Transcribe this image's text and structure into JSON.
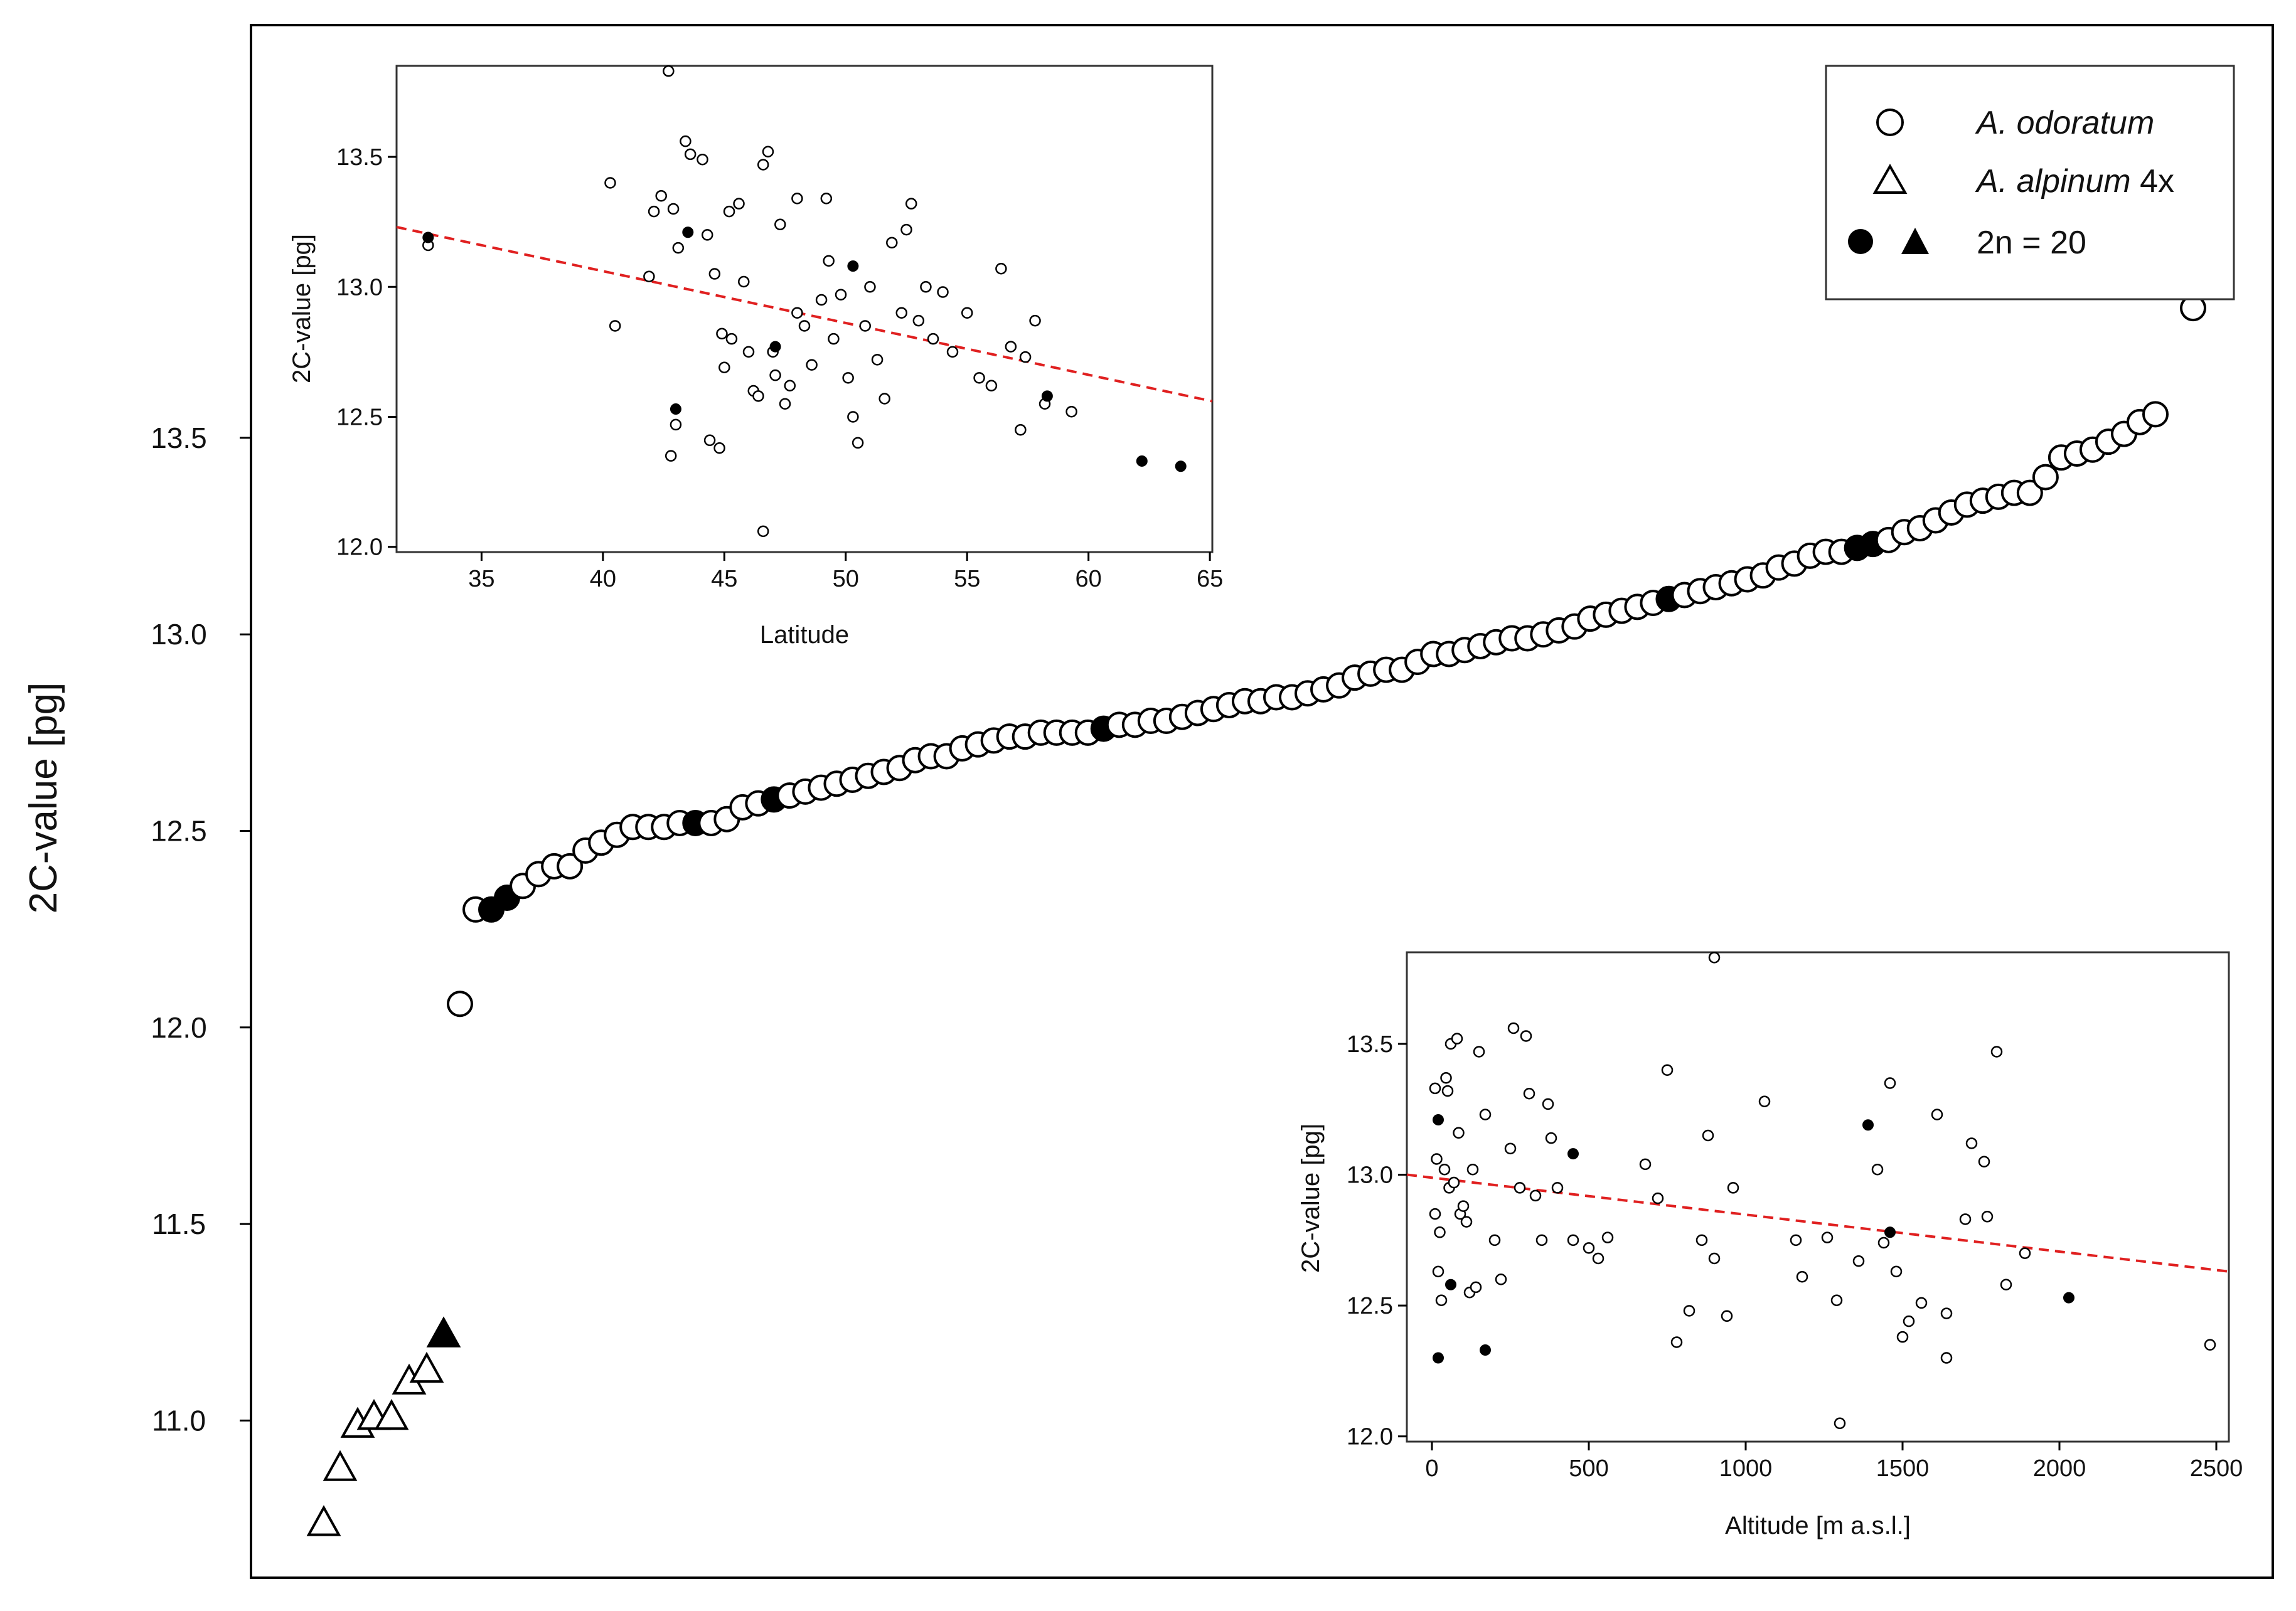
{
  "colors": {
    "trend": "#e02020",
    "ink": "#000000",
    "open_fill": "#ffffff"
  },
  "legend": {
    "items": [
      {
        "species": "A. odoratum",
        "suffix": "",
        "icon": "open-circle-icon"
      },
      {
        "species": "A. alpinum",
        "suffix": " 4x",
        "icon": "open-triangle-icon"
      },
      {
        "species": "",
        "suffix": "2n = 20",
        "icon": "filled-circle-and-triangle-icon"
      }
    ]
  },
  "chart_data": [
    {
      "id": "main",
      "type": "scatter",
      "title": "",
      "xlabel": "",
      "ylabel": "2C-value [pg]",
      "ylim": [
        10.6,
        14.55
      ],
      "yticks": [
        "11.0",
        "11.5",
        "12.0",
        "12.5",
        "13.0",
        "13.5"
      ],
      "ytick_values": [
        11.0,
        11.5,
        12.0,
        12.5,
        13.0,
        13.5
      ],
      "x_axis_shown": false,
      "series": [
        {
          "name": "A. alpinum 4x",
          "marker": "triangle-open",
          "values": [
            10.74,
            10.88,
            10.99,
            11.01,
            11.01,
            11.1,
            11.13
          ]
        },
        {
          "name": "A. alpinum 2n = 20",
          "marker": "triangle-filled",
          "values": [
            11.22
          ]
        },
        {
          "name": "A. odoratum",
          "marker": "circle-open",
          "values": [
            12.06,
            12.3,
            12.3,
            12.33,
            12.36,
            12.39,
            12.41,
            12.41,
            12.45,
            12.47,
            12.49,
            12.51,
            12.51,
            12.51,
            12.52,
            12.52,
            12.52,
            12.53,
            12.56,
            12.57,
            12.58,
            12.59,
            12.6,
            12.61,
            12.62,
            12.63,
            12.64,
            12.65,
            12.66,
            12.68,
            12.69,
            12.69,
            12.71,
            12.72,
            12.73,
            12.74,
            12.74,
            12.75,
            12.75,
            12.75,
            12.75,
            12.76,
            12.77,
            12.77,
            12.78,
            12.78,
            12.79,
            12.8,
            12.81,
            12.82,
            12.83,
            12.83,
            12.84,
            12.84,
            12.85,
            12.86,
            12.87,
            12.89,
            12.9,
            12.91,
            12.91,
            12.93,
            12.95,
            12.95,
            12.96,
            12.97,
            12.98,
            12.99,
            12.99,
            13.0,
            13.01,
            13.02,
            13.04,
            13.05,
            13.06,
            13.07,
            13.08,
            13.09,
            13.1,
            13.11,
            13.12,
            13.13,
            13.14,
            13.15,
            13.17,
            13.18,
            13.2,
            13.21,
            13.21,
            13.22,
            13.23,
            13.24,
            13.26,
            13.27,
            13.29,
            13.31,
            13.33,
            13.34,
            13.35,
            13.36,
            13.36,
            13.4,
            13.45,
            13.46,
            13.47,
            13.49,
            13.51,
            13.54,
            13.56,
            13.83
          ],
          "filled_indices": [
            2,
            3,
            15,
            20,
            41,
            77,
            89,
            90
          ]
        }
      ]
    },
    {
      "id": "inset-latitude",
      "type": "scatter",
      "xlabel": "Latitude",
      "ylabel": "2C-value [pg]",
      "xlim": [
        31.5,
        65.1
      ],
      "ylim": [
        11.98,
        13.85
      ],
      "xticks": [
        "35",
        "40",
        "45",
        "50",
        "55",
        "60",
        "65"
      ],
      "xtick_values": [
        35,
        40,
        45,
        50,
        55,
        60,
        65
      ],
      "yticks": [
        "12.0",
        "12.5",
        "13.0",
        "13.5"
      ],
      "ytick_values": [
        12.0,
        12.5,
        13.0,
        13.5
      ],
      "trend": {
        "x": [
          31.5,
          65.1
        ],
        "y": [
          13.23,
          12.56
        ],
        "style": "dashed"
      },
      "series": [
        {
          "name": "A. odoratum",
          "marker": "circle-open",
          "points": [
            [
              32.8,
              13.16
            ],
            [
              40.3,
              13.4
            ],
            [
              40.5,
              12.85
            ],
            [
              41.9,
              13.04
            ],
            [
              42.1,
              13.29
            ],
            [
              42.4,
              13.35
            ],
            [
              42.7,
              13.83
            ],
            [
              42.9,
              13.3
            ],
            [
              43.1,
              13.15
            ],
            [
              43.4,
              13.56
            ],
            [
              43.6,
              13.51
            ],
            [
              44.1,
              13.49
            ],
            [
              44.3,
              13.2
            ],
            [
              44.6,
              13.05
            ],
            [
              44.9,
              12.82
            ],
            [
              45.0,
              12.69
            ],
            [
              45.3,
              12.8
            ],
            [
              45.6,
              13.32
            ],
            [
              45.8,
              13.02
            ],
            [
              46.0,
              12.75
            ],
            [
              46.2,
              12.6
            ],
            [
              46.4,
              12.58
            ],
            [
              46.6,
              13.47
            ],
            [
              46.8,
              13.52
            ],
            [
              47.0,
              12.75
            ],
            [
              47.1,
              12.66
            ],
            [
              47.3,
              13.24
            ],
            [
              47.5,
              12.55
            ],
            [
              47.7,
              12.62
            ],
            [
              48.0,
              12.9
            ],
            [
              48.3,
              12.85
            ],
            [
              48.6,
              12.7
            ],
            [
              49.0,
              12.95
            ],
            [
              49.3,
              13.1
            ],
            [
              49.5,
              12.8
            ],
            [
              49.8,
              12.97
            ],
            [
              50.1,
              12.65
            ],
            [
              50.3,
              12.5
            ],
            [
              50.5,
              12.4
            ],
            [
              50.8,
              12.85
            ],
            [
              51.0,
              13.0
            ],
            [
              51.3,
              12.72
            ],
            [
              51.6,
              12.57
            ],
            [
              51.9,
              13.17
            ],
            [
              52.3,
              12.9
            ],
            [
              52.5,
              13.22
            ],
            [
              52.7,
              13.32
            ],
            [
              53.0,
              12.87
            ],
            [
              53.3,
              13.0
            ],
            [
              53.6,
              12.8
            ],
            [
              54.0,
              12.98
            ],
            [
              54.4,
              12.75
            ],
            [
              55.0,
              12.9
            ],
            [
              55.5,
              12.65
            ],
            [
              56.0,
              12.62
            ],
            [
              56.4,
              13.07
            ],
            [
              56.8,
              12.77
            ],
            [
              57.2,
              12.45
            ],
            [
              57.4,
              12.73
            ],
            [
              57.8,
              12.87
            ],
            [
              58.2,
              12.55
            ],
            [
              59.3,
              12.52
            ],
            [
              44.4,
              12.41
            ],
            [
              44.8,
              12.38
            ],
            [
              46.6,
              12.06
            ],
            [
              42.8,
              12.35
            ],
            [
              43.0,
              12.47
            ],
            [
              48.0,
              13.34
            ],
            [
              49.2,
              13.34
            ],
            [
              45.2,
              13.29
            ]
          ]
        },
        {
          "name": "2n = 20",
          "marker": "circle-filled",
          "points": [
            [
              32.8,
              13.19
            ],
            [
              43.5,
              13.21
            ],
            [
              43.0,
              12.53
            ],
            [
              47.1,
              12.77
            ],
            [
              50.3,
              13.08
            ],
            [
              58.3,
              12.58
            ],
            [
              62.2,
              12.33
            ],
            [
              63.8,
              12.31
            ]
          ]
        }
      ]
    },
    {
      "id": "inset-altitude",
      "type": "scatter",
      "xlabel": "Altitude [m a.s.l.]",
      "ylabel": "2C-value [pg]",
      "xlim": [
        -80,
        2540
      ],
      "ylim": [
        11.98,
        13.85
      ],
      "xticks": [
        "0",
        "500",
        "1000",
        "1500",
        "2000",
        "2500"
      ],
      "xtick_values": [
        0,
        500,
        1000,
        1500,
        2000,
        2500
      ],
      "yticks": [
        "12.0",
        "12.5",
        "13.0",
        "13.5"
      ],
      "ytick_values": [
        12.0,
        12.5,
        13.0,
        13.5
      ],
      "trend": {
        "x": [
          -80,
          2540
        ],
        "y": [
          13.0,
          12.63
        ],
        "style": "dashed"
      },
      "series": [
        {
          "name": "A. odoratum",
          "marker": "circle-open",
          "points": [
            [
              10,
              13.33
            ],
            [
              10,
              12.85
            ],
            [
              15,
              13.06
            ],
            [
              20,
              12.63
            ],
            [
              25,
              12.78
            ],
            [
              30,
              12.52
            ],
            [
              40,
              13.02
            ],
            [
              45,
              13.37
            ],
            [
              50,
              13.32
            ],
            [
              55,
              12.95
            ],
            [
              60,
              13.5
            ],
            [
              70,
              12.97
            ],
            [
              80,
              13.52
            ],
            [
              85,
              13.16
            ],
            [
              90,
              12.85
            ],
            [
              100,
              12.88
            ],
            [
              110,
              12.82
            ],
            [
              120,
              12.55
            ],
            [
              130,
              13.02
            ],
            [
              140,
              12.57
            ],
            [
              150,
              13.47
            ],
            [
              170,
              13.23
            ],
            [
              200,
              12.75
            ],
            [
              220,
              12.6
            ],
            [
              250,
              13.1
            ],
            [
              260,
              13.56
            ],
            [
              280,
              12.95
            ],
            [
              300,
              13.53
            ],
            [
              310,
              13.31
            ],
            [
              330,
              12.92
            ],
            [
              350,
              12.75
            ],
            [
              370,
              13.27
            ],
            [
              380,
              13.14
            ],
            [
              400,
              12.95
            ],
            [
              450,
              12.75
            ],
            [
              500,
              12.72
            ],
            [
              530,
              12.68
            ],
            [
              560,
              12.76
            ],
            [
              680,
              13.04
            ],
            [
              720,
              12.91
            ],
            [
              750,
              13.4
            ],
            [
              780,
              12.36
            ],
            [
              820,
              12.48
            ],
            [
              860,
              12.75
            ],
            [
              880,
              13.15
            ],
            [
              900,
              12.68
            ],
            [
              900,
              13.83
            ],
            [
              940,
              12.46
            ],
            [
              960,
              12.95
            ],
            [
              1060,
              13.28
            ],
            [
              1160,
              12.75
            ],
            [
              1180,
              12.61
            ],
            [
              1260,
              12.76
            ],
            [
              1290,
              12.52
            ],
            [
              1300,
              12.05
            ],
            [
              1360,
              12.67
            ],
            [
              1420,
              13.02
            ],
            [
              1440,
              12.74
            ],
            [
              1460,
              13.35
            ],
            [
              1480,
              12.63
            ],
            [
              1500,
              12.38
            ],
            [
              1520,
              12.44
            ],
            [
              1560,
              12.51
            ],
            [
              1610,
              13.23
            ],
            [
              1640,
              12.3
            ],
            [
              1640,
              12.47
            ],
            [
              1700,
              12.83
            ],
            [
              1720,
              13.12
            ],
            [
              1760,
              13.05
            ],
            [
              1770,
              12.84
            ],
            [
              1800,
              13.47
            ],
            [
              1830,
              12.58
            ],
            [
              1890,
              12.7
            ],
            [
              2480,
              12.35
            ]
          ]
        },
        {
          "name": "2n = 20",
          "marker": "circle-filled",
          "points": [
            [
              20,
              13.21
            ],
            [
              20,
              12.3
            ],
            [
              60,
              12.58
            ],
            [
              170,
              12.33
            ],
            [
              450,
              13.08
            ],
            [
              1390,
              13.19
            ],
            [
              1460,
              12.78
            ],
            [
              2030,
              12.53
            ]
          ]
        }
      ]
    }
  ]
}
